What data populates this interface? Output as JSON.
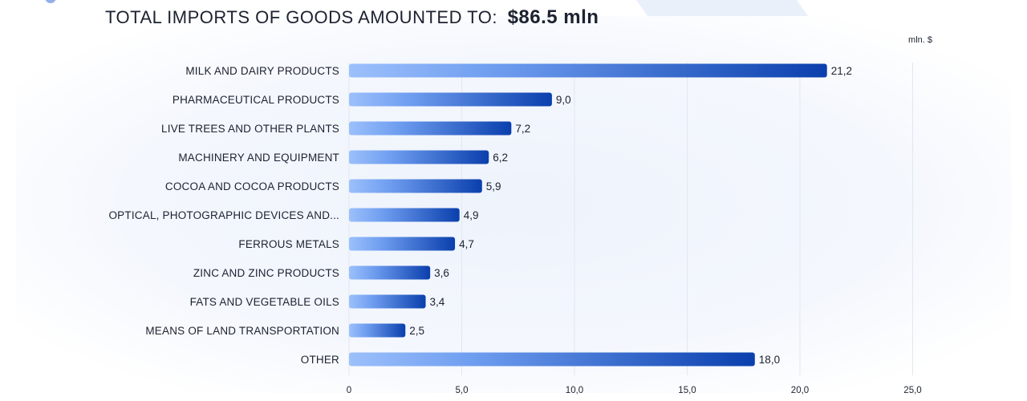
{
  "header": {
    "title_prefix": "TOTAL IMPORTS OF GOODS AMOUNTED TO:",
    "title_total": "$86.5  mln",
    "unit": "mln. $"
  },
  "colors": {
    "bar_start": "#9cc0fb",
    "bar_end": "#0a3fad",
    "grid": "#e3e7ef"
  },
  "chart_data": {
    "type": "bar",
    "orientation": "horizontal",
    "title": "TOTAL IMPORTS OF GOODS AMOUNTED TO: $86.5  mln",
    "xlabel": "",
    "ylabel": "",
    "unit": "mln. $",
    "categories": [
      "MILK AND DAIRY PRODUCTS",
      "PHARMACEUTICAL PRODUCTS",
      "LIVE TREES AND OTHER PLANTS",
      "MACHINERY AND EQUIPMENT",
      "COCOA AND COCOA PRODUCTS",
      "OPTICAL, PHOTOGRAPHIC DEVICES AND...",
      "FERROUS METALS",
      "ZINC AND ZINC PRODUCTS",
      "FATS AND VEGETABLE OILS",
      "MEANS OF LAND TRANSPORTATION",
      "OTHER"
    ],
    "values": [
      21.2,
      9.0,
      7.2,
      6.2,
      5.9,
      4.9,
      4.7,
      3.6,
      3.4,
      2.5,
      18.0
    ],
    "value_labels": [
      "21,2",
      "9,0",
      "7,2",
      "6,2",
      "5,9",
      "4,9",
      "4,7",
      "3,6",
      "3,4",
      "2,5",
      "18,0"
    ],
    "xlim": [
      0,
      25
    ],
    "xticks": [
      0,
      5,
      10,
      15,
      20,
      25
    ],
    "xtick_labels": [
      "0",
      "5,0",
      "10,0",
      "15,0",
      "20,0",
      "25,0"
    ],
    "grid": true,
    "legend": "none"
  }
}
